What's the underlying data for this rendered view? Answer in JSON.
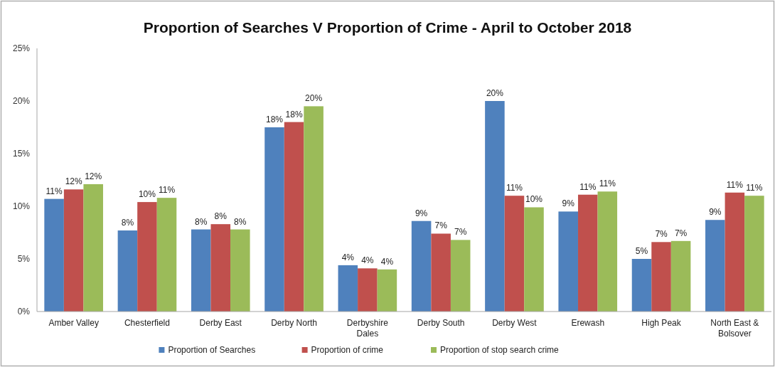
{
  "chart_data": {
    "type": "bar",
    "title": "Proportion of Searches V Proportion of Crime - April to October 2018",
    "categories": [
      "Amber Valley",
      "Chesterfield",
      "Derby East",
      "Derby North",
      "Derbyshire Dales",
      "Derby South",
      "Derby West",
      "Erewash",
      "High Peak",
      "North East & Bolsover"
    ],
    "series": [
      {
        "name": "Proportion of Searches",
        "color": "#4f81bd",
        "values": [
          10.7,
          7.7,
          7.8,
          17.5,
          4.4,
          8.6,
          20.0,
          9.5,
          5.0,
          8.7
        ],
        "value_labels": [
          "11%",
          "8%",
          "8%",
          "18%",
          "4%",
          "9%",
          "20%",
          "9%",
          "5%",
          "9%"
        ]
      },
      {
        "name": "Proportion of crime",
        "color": "#c0504d",
        "values": [
          11.6,
          10.4,
          8.3,
          18.0,
          4.1,
          7.4,
          11.0,
          11.1,
          6.6,
          11.3
        ],
        "value_labels": [
          "12%",
          "10%",
          "8%",
          "18%",
          "4%",
          "7%",
          "11%",
          "11%",
          "7%",
          "11%"
        ]
      },
      {
        "name": "Proportion of stop search crime",
        "color": "#9bbb59",
        "values": [
          12.1,
          10.8,
          7.8,
          19.5,
          4.0,
          6.8,
          9.9,
          11.4,
          6.7,
          11.0
        ],
        "value_labels": [
          "12%",
          "11%",
          "8%",
          "20%",
          "4%",
          "7%",
          "10%",
          "11%",
          "7%",
          "11%"
        ]
      }
    ],
    "ylim": [
      0,
      25
    ],
    "yticks": [
      {
        "value": 0,
        "label": "0%"
      },
      {
        "value": 5,
        "label": "5%"
      },
      {
        "value": 10,
        "label": "10%"
      },
      {
        "value": 15,
        "label": "15%"
      },
      {
        "value": 20,
        "label": "20%"
      },
      {
        "value": 25,
        "label": "25%"
      }
    ],
    "grid": false,
    "legend": "bottom"
  }
}
